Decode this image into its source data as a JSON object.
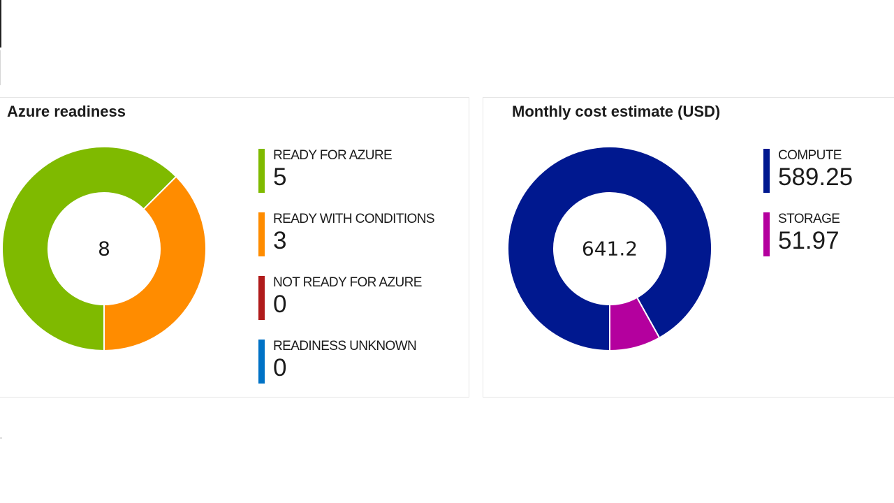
{
  "colors": {
    "ready": "#7fba00",
    "conditions": "#ff8c00",
    "not_ready": "#b01b1b",
    "unknown": "#0072c6",
    "compute": "#00188f",
    "storage": "#b4009e"
  },
  "readiness": {
    "title": "Azure readiness",
    "center_value": "8",
    "legend": [
      {
        "label": "READY FOR AZURE",
        "value": "5"
      },
      {
        "label": "READY WITH CONDITIONS",
        "value": "3"
      },
      {
        "label": "NOT READY FOR AZURE",
        "value": "0"
      },
      {
        "label": "READINESS UNKNOWN",
        "value": "0"
      }
    ]
  },
  "cost": {
    "title": "Monthly cost estimate (USD)",
    "center_value": "641.2",
    "legend": [
      {
        "label": "COMPUTE",
        "value": "589.25"
      },
      {
        "label": "STORAGE",
        "value": "51.97"
      }
    ]
  },
  "chart_data": [
    {
      "type": "pie",
      "title": "Azure readiness",
      "categories": [
        "READY FOR AZURE",
        "READY WITH CONDITIONS",
        "NOT READY FOR AZURE",
        "READINESS UNKNOWN"
      ],
      "values": [
        5,
        3,
        0,
        0
      ],
      "colors": [
        "#7fba00",
        "#ff8c00",
        "#b01b1b",
        "#0072c6"
      ],
      "center_label": "8",
      "legend": "right"
    },
    {
      "type": "pie",
      "title": "Monthly cost estimate (USD)",
      "categories": [
        "COMPUTE",
        "STORAGE"
      ],
      "values": [
        589.25,
        51.97
      ],
      "colors": [
        "#00188f",
        "#b4009e"
      ],
      "center_label": "641.2",
      "legend": "right"
    }
  ]
}
